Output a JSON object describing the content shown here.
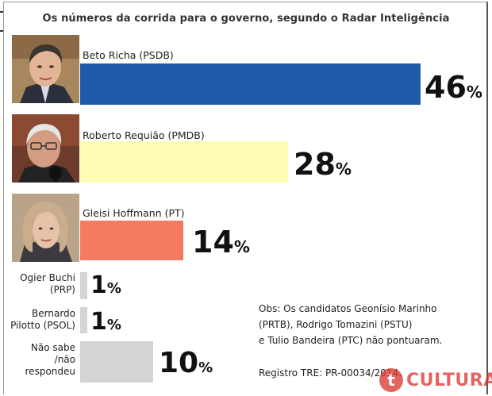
{
  "title": "Os números da corrida para o governo, segundo o Radar Inteligência",
  "chart_data": {
    "type": "bar",
    "orientation": "horizontal",
    "title": "Os números da corrida para o governo, segundo o Radar Inteligência",
    "xlim": [
      0,
      46
    ],
    "categories": [
      "Beto Richa (PSDB)",
      "Roberto Requião (PMDB)",
      "Gleisi Hoffmann (PT)",
      "Ogier Buchi (PRP)",
      "Bernardo Pilotto (PSOL)",
      "Não sabe /não respondeu"
    ],
    "values": [
      46,
      28,
      14,
      1,
      1,
      10
    ],
    "value_labels": [
      "46",
      "28",
      "14",
      "1",
      "1",
      "10"
    ],
    "unit": "%",
    "colors": [
      "#1e5ba8",
      "#fdfdb3",
      "#f47a60",
      "#d4d4d4",
      "#d4d4d4",
      "#d4d4d4"
    ]
  },
  "candidates_top": [
    {
      "name": "Beto Richa (PSDB)",
      "pct": "46",
      "color": "#1e5ba8"
    },
    {
      "name": "Roberto Requião (PMDB)",
      "pct": "28",
      "color": "#fdfdb3"
    },
    {
      "name": "Gleisi Hoffmann (PT)",
      "pct": "14",
      "color": "#f47a60"
    }
  ],
  "candidates_small": [
    {
      "name_line1": "Ogier Buchi",
      "name_line2": "(PRP)",
      "pct": "1"
    },
    {
      "name_line1": "Bernardo",
      "name_line2": "Pilotto (PSOL)",
      "pct": "1"
    },
    {
      "name_line1": "Não sabe",
      "name_line2": "/não",
      "name_line3": "respondeu",
      "pct": "10"
    }
  ],
  "percent_sign": "%",
  "obs": {
    "line1": "Obs: Os candidatos Geonísio Marinho",
    "line2": "(PRTB), Rodrigo Tomazini (PSTU)",
    "line3": "e Tulio Bandeira (PTC) não pontuaram."
  },
  "registro": "Registro TRE:  PR-00034/2014.",
  "logo": {
    "mark": "t",
    "text": "CULTURA",
    "color": "#d9322c"
  }
}
